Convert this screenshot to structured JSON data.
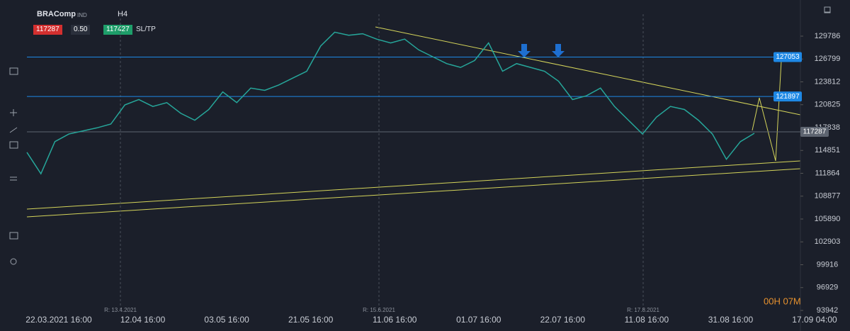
{
  "toolbar": {
    "symbol": "BRAComp",
    "symbol_type": "IND",
    "timeframe": "H4",
    "sell_price": "117287",
    "lot": "0.50",
    "buy_price": "117427",
    "sltp": "SL/TP"
  },
  "chart_data": {
    "type": "line",
    "color": "#26a69a",
    "values": [
      114600,
      111800,
      116000,
      117000,
      117400,
      117800,
      118300,
      120800,
      121500,
      120600,
      121100,
      119700,
      118800,
      120200,
      122500,
      121100,
      123000,
      122700,
      123400,
      124300,
      125200,
      128500,
      130300,
      129900,
      130100,
      129400,
      128900,
      129400,
      128000,
      127100,
      126200,
      125700,
      126600,
      128900,
      125200,
      126200,
      125700,
      125200,
      123900,
      121500,
      122000,
      123000,
      120600,
      118800,
      117000,
      119200,
      120600,
      120200,
      118800,
      117000,
      113700,
      116000,
      117100
    ],
    "x_labels": [
      "22.03.2021 16:00",
      "12.04 16:00",
      "03.05 16:00",
      "21.05 16:00",
      "11.06 16:00",
      "01.07 16:00",
      "22.07 16:00",
      "11.08 16:00",
      "31.08 16:00",
      "17.09 04:00"
    ],
    "ylim": [
      93757,
      131731
    ],
    "yticks": [
      129786,
      126799,
      123812,
      120825,
      117838,
      114851,
      111864,
      108877,
      105890,
      102903,
      99916,
      96929,
      93942
    ],
    "levels": [
      {
        "value": 127053,
        "color": "#1e88e5"
      },
      {
        "value": 121897,
        "color": "#1e88e5"
      },
      {
        "value": 117287,
        "color": "#5d6470"
      }
    ],
    "markers": [
      "R: 13.4.2021",
      "R: 15.6.2021",
      "R: 17.8.2021"
    ],
    "countdown": "00H 07M"
  }
}
